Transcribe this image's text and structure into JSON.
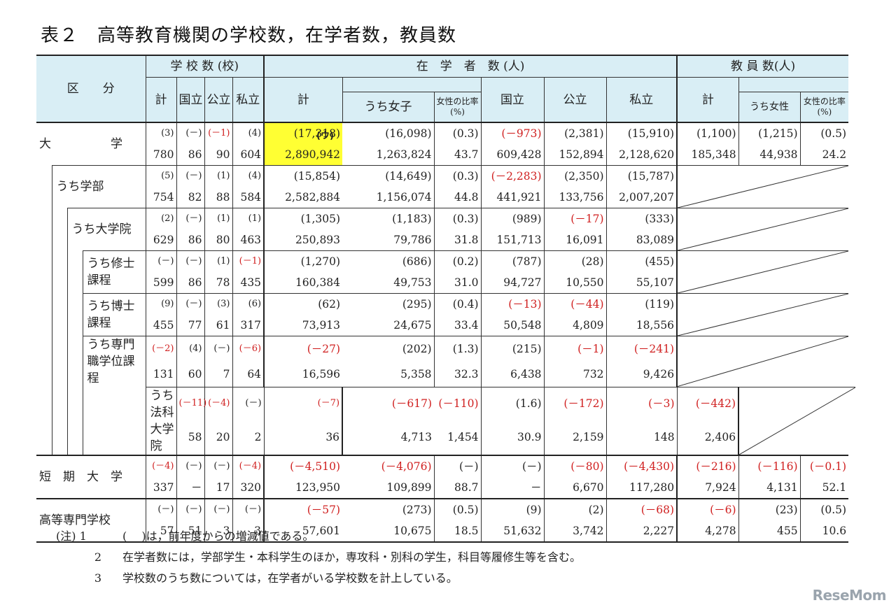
{
  "title": "表２　高等教育機関の学校数，在学者数，教員数",
  "header": {
    "category": "区　　分",
    "schools_group": "学 校 数 (校)",
    "students_group": "在　学　者　数 (人)",
    "faculty_group": "教 員 数(人)",
    "school_cols": [
      "計",
      "国立",
      "公立",
      "私立"
    ],
    "student_total": "計",
    "student_female": "うち女子",
    "student_ratio": "女性の比率(%)",
    "student_national": "国立",
    "student_public": "公立",
    "student_private": "私立",
    "faculty_total": "計",
    "faculty_female": "うち女性",
    "faculty_ratio": "女性の比率(%)"
  },
  "note_marker": "(ウ)",
  "rows": [
    {
      "label": "大　　　　　学",
      "diff": [
        "(3)",
        "(－)",
        "(－1)",
        "(4)",
        "(17,318)",
        "(16,098)",
        "(0.3)",
        "(－973)",
        "(2,381)",
        "(15,910)",
        "(1,100)",
        "(1,215)",
        "(0.5)"
      ],
      "val": [
        "780",
        "86",
        "90",
        "604",
        "2,890,942",
        "1,263,824",
        "43.7",
        "609,428",
        "152,894",
        "2,128,620",
        "185,348",
        "44,938",
        "24.2"
      ]
    },
    {
      "label": "うち学部",
      "diff": [
        "(5)",
        "(－)",
        "(1)",
        "(4)",
        "(15,854)",
        "(14,649)",
        "(0.3)",
        "(－2,283)",
        "(2,350)",
        "(15,787)"
      ],
      "val": [
        "754",
        "82",
        "88",
        "584",
        "2,582,884",
        "1,156,074",
        "44.8",
        "441,921",
        "133,756",
        "2,007,207"
      ]
    },
    {
      "label": "うち大学院",
      "diff": [
        "(2)",
        "(－)",
        "(1)",
        "(1)",
        "(1,305)",
        "(1,183)",
        "(0.3)",
        "(989)",
        "(－17)",
        "(333)"
      ],
      "val": [
        "629",
        "86",
        "80",
        "463",
        "250,893",
        "79,786",
        "31.8",
        "151,713",
        "16,091",
        "83,089"
      ]
    },
    {
      "label": "うち修士課程",
      "diff": [
        "(－)",
        "(－)",
        "(1)",
        "(－1)",
        "(1,270)",
        "(686)",
        "(0.2)",
        "(787)",
        "(28)",
        "(455)"
      ],
      "val": [
        "599",
        "86",
        "78",
        "435",
        "160,384",
        "49,753",
        "31.0",
        "94,727",
        "10,550",
        "55,107"
      ]
    },
    {
      "label": "うち博士課程",
      "diff": [
        "(9)",
        "(－)",
        "(3)",
        "(6)",
        "(62)",
        "(295)",
        "(0.4)",
        "(－13)",
        "(－44)",
        "(119)"
      ],
      "val": [
        "455",
        "77",
        "61",
        "317",
        "73,913",
        "24,675",
        "33.4",
        "50,548",
        "4,809",
        "18,556"
      ]
    },
    {
      "label": "うち専門職学位課程",
      "diff": [
        "(－2)",
        "(4)",
        "(－)",
        "(－6)",
        "(－27)",
        "(202)",
        "(1.3)",
        "(215)",
        "(－1)",
        "(－241)"
      ],
      "val": [
        "131",
        "60",
        "7",
        "64",
        "16,596",
        "5,358",
        "32.3",
        "6,438",
        "732",
        "9,426"
      ]
    },
    {
      "label": "うち法科大学院",
      "diff": [
        "(－11)",
        "(－4)",
        "(－)",
        "(－7)",
        "(－617)",
        "(－110)",
        "(1.6)",
        "(－172)",
        "(－3)",
        "(－442)"
      ],
      "val": [
        "58",
        "20",
        "2",
        "36",
        "4,713",
        "1,454",
        "30.9",
        "2,159",
        "148",
        "2,406"
      ]
    },
    {
      "label": "短　期　大　学",
      "diff": [
        "(－4)",
        "(－)",
        "(－)",
        "(－4)",
        "(－4,510)",
        "(－4,076)",
        "(－)",
        "(－)",
        "(－80)",
        "(－4,430)",
        "(－216)",
        "(－116)",
        "(－0.1)"
      ],
      "val": [
        "337",
        "－",
        "17",
        "320",
        "123,950",
        "109,899",
        "88.7",
        "－",
        "6,670",
        "117,280",
        "7,924",
        "4,131",
        "52.1"
      ]
    },
    {
      "label": "高等専門学校",
      "diff": [
        "(－)",
        "(－)",
        "(－)",
        "(－)",
        "(－57)",
        "(273)",
        "(0.5)",
        "(9)",
        "(2)",
        "(－68)",
        "(－6)",
        "(23)",
        "(0.5)"
      ],
      "val": [
        "57",
        "51",
        "3",
        "3",
        "57,601",
        "10,675",
        "18.5",
        "51,632",
        "3,742",
        "2,227",
        "4,278",
        "455",
        "10.6"
      ]
    }
  ],
  "notes": [
    {
      "key": "(注) 1",
      "text": "(　 )は，前年度からの増減値である。"
    },
    {
      "key": "2",
      "text": "在学者数には，学部学生・本科学生のほか，専攻科・別科の学生，科目等履修生等を含む。"
    },
    {
      "key": "3",
      "text": "学校数のうち数については，在学者がいる学校数を計上している。"
    }
  ],
  "logo": "ReseMom"
}
